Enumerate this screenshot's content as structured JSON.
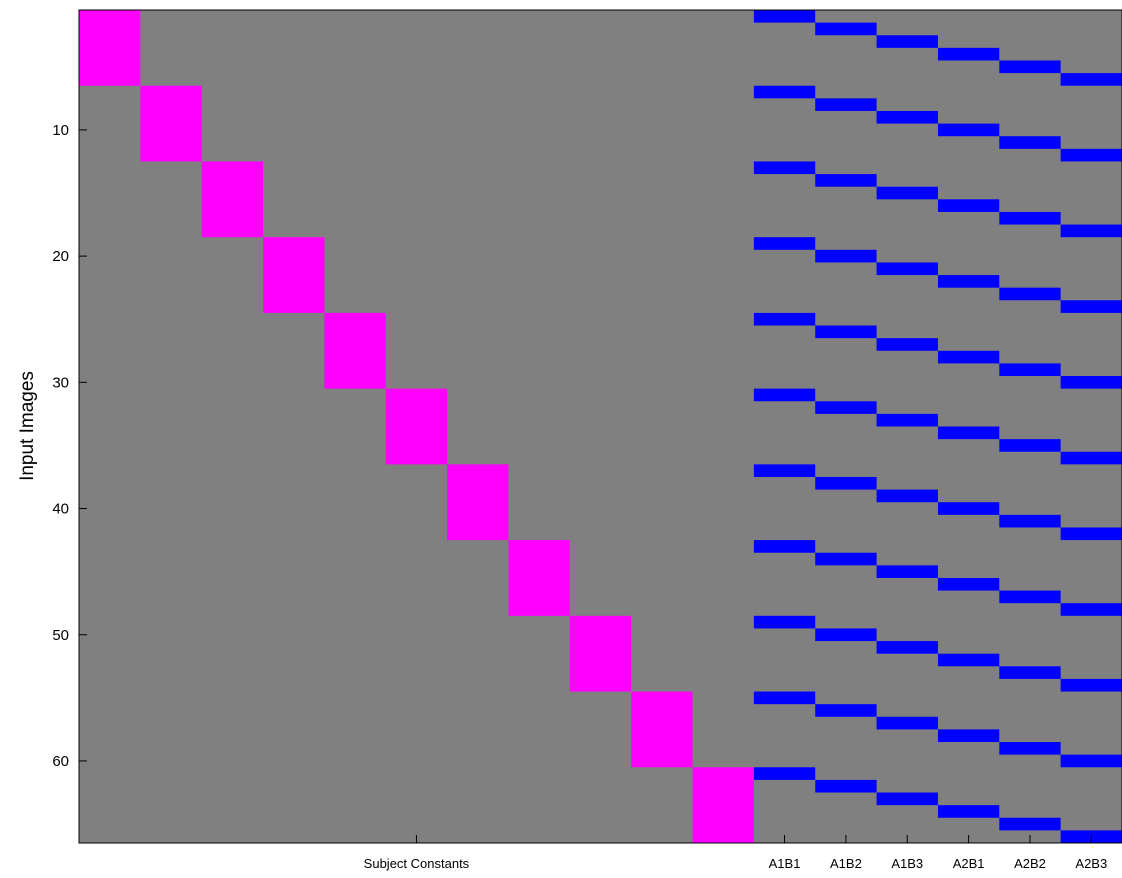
{
  "chart_data": {
    "type": "heatmap",
    "title": "",
    "ylabel": "Input Images",
    "xlabel": "Subject Constants",
    "n_rows": 66,
    "subjects": {
      "count": 11,
      "rows_per_subject": 6,
      "color": "#ff00ff"
    },
    "conditions": {
      "labels": [
        "A1B1",
        "A1B2",
        "A1B3",
        "A2B1",
        "A2B2",
        "A2B3"
      ],
      "color": "#0000ff",
      "period": 6
    },
    "yticks": [
      10,
      20,
      30,
      40,
      50,
      60
    ],
    "background_color": "#808080",
    "grid": false
  }
}
